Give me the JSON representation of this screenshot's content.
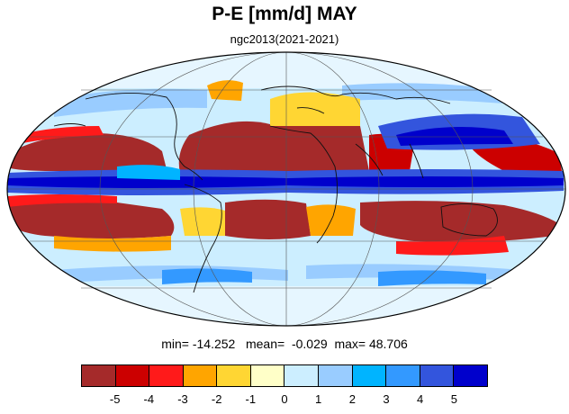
{
  "title": "P-E [mm/d] MAY",
  "subtitle": "ngc2013(2021-2021)",
  "stats": {
    "min_label": "min=",
    "min": "-14.252",
    "mean_label": "mean=",
    "mean": "-0.029",
    "max_label": "max=",
    "max": "48.706"
  },
  "colorbar": {
    "colors": [
      "#a52a2a",
      "#cc0000",
      "#ff1a1a",
      "#ffa500",
      "#ffd633",
      "#ffffc8",
      "#cceeff",
      "#99ccff",
      "#00b4ff",
      "#3399ff",
      "#3355dd",
      "#0000cc"
    ],
    "labels": [
      "-5",
      "-4",
      "-3",
      "-2",
      "-1",
      "0",
      "1",
      "2",
      "3",
      "4",
      "5"
    ]
  },
  "map": {
    "projection": "mollweide",
    "ocean_background": "#cceeff"
  }
}
